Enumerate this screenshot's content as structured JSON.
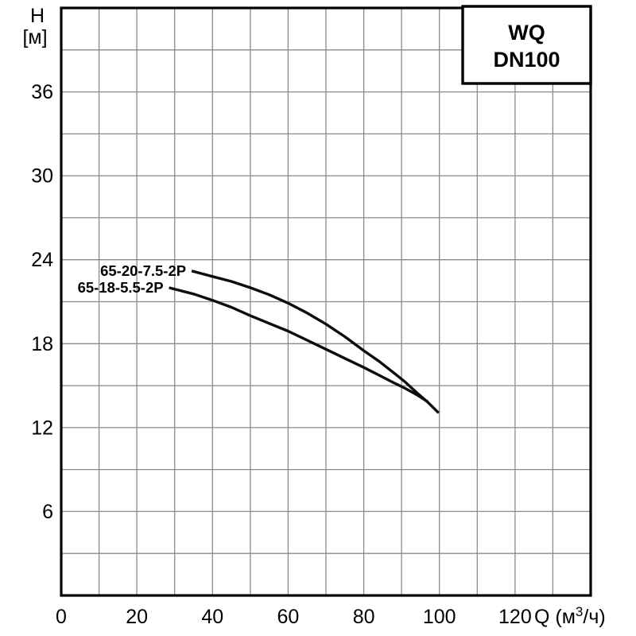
{
  "title_box": {
    "line1": "WQ",
    "line2": "DN100"
  },
  "y_axis": {
    "title": "H",
    "unit": "[м]",
    "tick_values": [
      36,
      30,
      24,
      18,
      12,
      6
    ]
  },
  "x_axis": {
    "title": "Q (м³/ч)",
    "tick_values": [
      0,
      20,
      40,
      60,
      80,
      100,
      120
    ],
    "label_parts": {
      "prefix": "Q (м",
      "sup": "3",
      "suffix": "/ч)"
    }
  },
  "colors": {
    "background": "#ffffff",
    "grid": "#8a8a8a",
    "curve": "#0d0d0d",
    "border": "#000000",
    "text": "#000000"
  },
  "chart_data": {
    "type": "line",
    "title": "WQ DN100",
    "xlabel": "Q (м³/ч)",
    "ylabel": "H [м]",
    "xlim": [
      0,
      140
    ],
    "ylim": [
      0,
      42
    ],
    "x_grid_step": 10,
    "y_grid_step": 3,
    "x_tick_step": 20,
    "y_tick_step": 6,
    "grid": true,
    "legend_position": "top-right box",
    "series": [
      {
        "name": "65-20-7.5-2P",
        "points": [
          [
            34.5,
            23.2
          ],
          [
            40,
            22.8
          ],
          [
            45,
            22.45
          ],
          [
            50,
            22.0
          ],
          [
            55,
            21.5
          ],
          [
            60,
            20.9
          ],
          [
            65,
            20.2
          ],
          [
            70,
            19.4
          ],
          [
            75,
            18.5
          ],
          [
            80,
            17.5
          ],
          [
            84,
            16.75
          ],
          [
            88,
            15.9
          ],
          [
            91,
            15.25
          ],
          [
            94,
            14.5
          ],
          [
            97,
            13.8
          ],
          [
            99.8,
            13.05
          ]
        ]
      },
      {
        "name": "65-18-5.5-2P",
        "points": [
          [
            28.5,
            22.0
          ],
          [
            35,
            21.55
          ],
          [
            40,
            21.1
          ],
          [
            45,
            20.6
          ],
          [
            50,
            20.0
          ],
          [
            55,
            19.45
          ],
          [
            60,
            18.9
          ],
          [
            65,
            18.25
          ],
          [
            70,
            17.6
          ],
          [
            75,
            16.95
          ],
          [
            80,
            16.3
          ],
          [
            84,
            15.75
          ],
          [
            88,
            15.2
          ],
          [
            91,
            14.8
          ],
          [
            94,
            14.35
          ],
          [
            96.9,
            13.85
          ]
        ]
      }
    ]
  }
}
